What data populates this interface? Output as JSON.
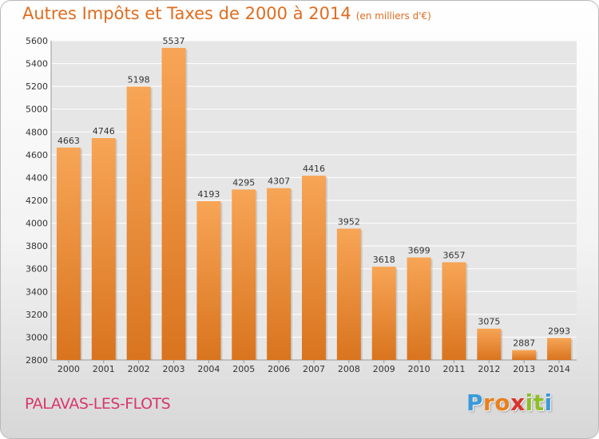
{
  "header": {
    "title": "Autres Impôts et Taxes de 2000 à 2014",
    "unit": "(en milliers d'€)"
  },
  "footer": {
    "commune": "PALAVAS-LES-FLOTS",
    "logo": [
      "P",
      "r",
      "o",
      "x",
      "i",
      "t",
      "i"
    ]
  },
  "colors": {
    "title": "#e06c1e",
    "bar_top": "#f7a556",
    "bar_bottom": "#d9741e",
    "commune": "#d8376b",
    "logo": [
      "#3b9ad9",
      "#e8801e",
      "#e8801e",
      "#d9342b",
      "#8cbf26",
      "#8cbf26",
      "#3b9ad9"
    ]
  },
  "chart_data": {
    "type": "bar",
    "categories": [
      "2000",
      "2001",
      "2002",
      "2003",
      "2004",
      "2005",
      "2006",
      "2007",
      "2008",
      "2009",
      "2010",
      "2011",
      "2012",
      "2013",
      "2014"
    ],
    "values": [
      4663,
      4746,
      5198,
      5537,
      4193,
      4295,
      4307,
      4416,
      3952,
      3618,
      3699,
      3657,
      3075,
      2887,
      2993
    ],
    "data_labels": [
      "4663",
      "4746",
      "5198",
      "5537",
      "4193",
      "4295",
      "4307",
      "4416",
      "3952",
      "3618",
      "3699",
      "3657",
      "3075",
      "2887",
      "2993"
    ],
    "ylim": [
      2800,
      5600
    ],
    "yticks": [
      2800,
      3000,
      3200,
      3400,
      3600,
      3800,
      4000,
      4200,
      4400,
      4600,
      4800,
      5000,
      5200,
      5400,
      5600
    ],
    "grid": true
  }
}
